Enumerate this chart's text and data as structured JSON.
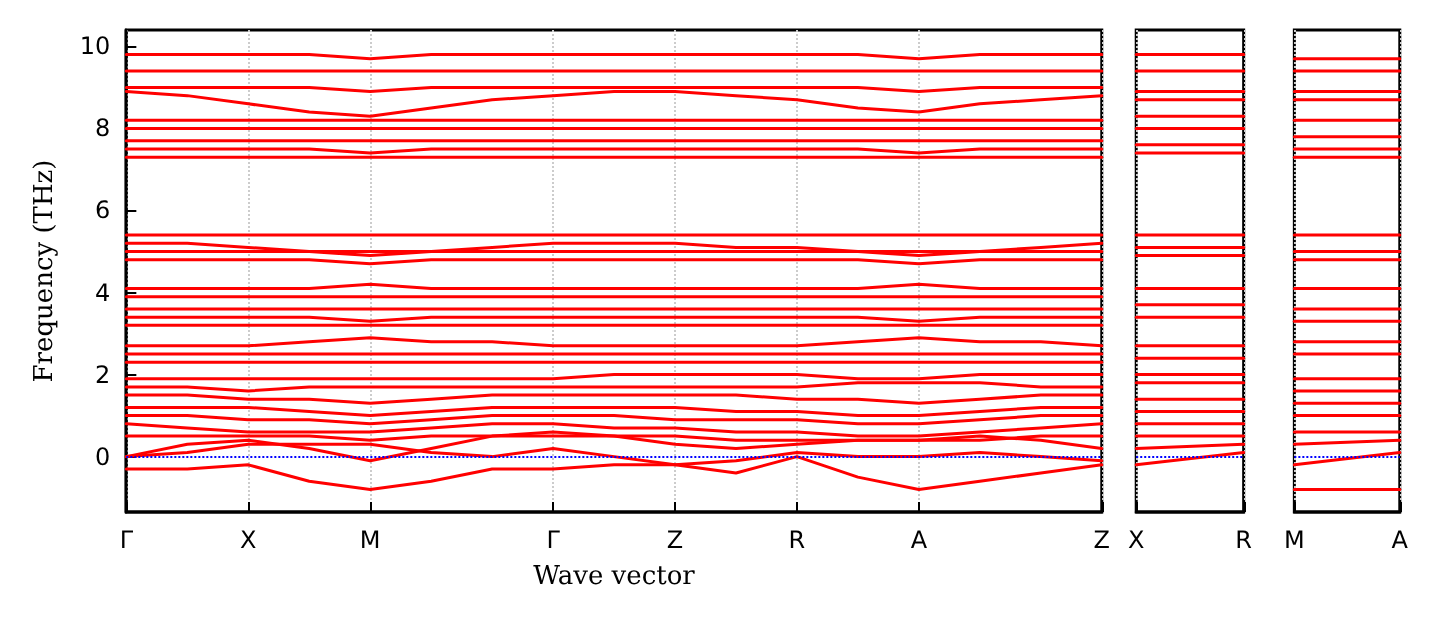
{
  "chart_data": [
    {
      "type": "line",
      "xlabel": "Wave vector",
      "ylabel": "Frequency (THz)",
      "categories": [
        "Γ",
        null,
        "X",
        null,
        "M",
        null,
        null,
        "Γ",
        null,
        "Z",
        null,
        "R",
        null,
        "A",
        null,
        null,
        "Z"
      ],
      "ylim": [
        -1.35,
        10.4
      ],
      "yticks": [
        0,
        2,
        4,
        6,
        8,
        10
      ],
      "grid": "x",
      "marker": "none",
      "line_style": "solid",
      "ref_lines": [
        {
          "axis": "y",
          "value": 0,
          "color": "#0000ff",
          "line_style": "dotted"
        }
      ],
      "series": [
        {
          "color": "#ff0000",
          "values": [
            9.8,
            9.8,
            9.8,
            9.8,
            9.7,
            9.8,
            9.8,
            9.8,
            9.8,
            9.8,
            9.8,
            9.8,
            9.8,
            9.7,
            9.8,
            9.8,
            9.8
          ]
        },
        {
          "color": "#ff0000",
          "values": [
            9.4,
            9.4,
            9.4,
            9.4,
            9.4,
            9.4,
            9.4,
            9.4,
            9.4,
            9.4,
            9.4,
            9.4,
            9.4,
            9.4,
            9.4,
            9.4,
            9.4
          ]
        },
        {
          "color": "#ff0000",
          "values": [
            9.0,
            9.0,
            9.0,
            9.0,
            8.9,
            9.0,
            9.0,
            9.0,
            9.0,
            9.0,
            9.0,
            9.0,
            9.0,
            8.9,
            9.0,
            9.0,
            9.0
          ]
        },
        {
          "color": "#ff0000",
          "values": [
            8.9,
            8.8,
            8.6,
            8.4,
            8.3,
            8.5,
            8.7,
            8.8,
            8.9,
            8.9,
            8.8,
            8.7,
            8.5,
            8.4,
            8.6,
            8.7,
            8.8
          ]
        },
        {
          "color": "#ff0000",
          "values": [
            8.2,
            8.2,
            8.2,
            8.2,
            8.2,
            8.2,
            8.2,
            8.2,
            8.2,
            8.2,
            8.2,
            8.2,
            8.2,
            8.2,
            8.2,
            8.2,
            8.2
          ]
        },
        {
          "color": "#ff0000",
          "values": [
            8.0,
            8.0,
            8.0,
            8.0,
            8.0,
            8.0,
            8.0,
            8.0,
            8.0,
            8.0,
            8.0,
            8.0,
            8.0,
            8.0,
            8.0,
            8.0,
            8.0
          ]
        },
        {
          "color": "#ff0000",
          "values": [
            7.7,
            7.7,
            7.7,
            7.7,
            7.7,
            7.7,
            7.7,
            7.7,
            7.7,
            7.7,
            7.7,
            7.7,
            7.7,
            7.7,
            7.7,
            7.7,
            7.7
          ]
        },
        {
          "color": "#ff0000",
          "values": [
            7.5,
            7.5,
            7.5,
            7.5,
            7.4,
            7.5,
            7.5,
            7.5,
            7.5,
            7.5,
            7.5,
            7.5,
            7.5,
            7.4,
            7.5,
            7.5,
            7.5
          ]
        },
        {
          "color": "#ff0000",
          "values": [
            7.3,
            7.3,
            7.3,
            7.3,
            7.3,
            7.3,
            7.3,
            7.3,
            7.3,
            7.3,
            7.3,
            7.3,
            7.3,
            7.3,
            7.3,
            7.3,
            7.3
          ]
        },
        {
          "color": "#ff0000",
          "values": [
            5.4,
            5.4,
            5.4,
            5.4,
            5.4,
            5.4,
            5.4,
            5.4,
            5.4,
            5.4,
            5.4,
            5.4,
            5.4,
            5.4,
            5.4,
            5.4,
            5.4
          ]
        },
        {
          "color": "#ff0000",
          "values": [
            5.2,
            5.2,
            5.1,
            5.0,
            4.9,
            5.0,
            5.1,
            5.2,
            5.2,
            5.2,
            5.1,
            5.1,
            5.0,
            4.9,
            5.0,
            5.1,
            5.2
          ]
        },
        {
          "color": "#ff0000",
          "values": [
            5.0,
            5.0,
            5.0,
            5.0,
            5.0,
            5.0,
            5.0,
            5.0,
            5.0,
            5.0,
            5.0,
            5.0,
            5.0,
            5.0,
            5.0,
            5.0,
            5.0
          ]
        },
        {
          "color": "#ff0000",
          "values": [
            4.8,
            4.8,
            4.8,
            4.8,
            4.7,
            4.8,
            4.8,
            4.8,
            4.8,
            4.8,
            4.8,
            4.8,
            4.8,
            4.7,
            4.8,
            4.8,
            4.8
          ]
        },
        {
          "color": "#ff0000",
          "values": [
            4.1,
            4.1,
            4.1,
            4.1,
            4.2,
            4.1,
            4.1,
            4.1,
            4.1,
            4.1,
            4.1,
            4.1,
            4.1,
            4.2,
            4.1,
            4.1,
            4.1
          ]
        },
        {
          "color": "#ff0000",
          "values": [
            3.9,
            3.9,
            3.9,
            3.9,
            3.9,
            3.9,
            3.9,
            3.9,
            3.9,
            3.9,
            3.9,
            3.9,
            3.9,
            3.9,
            3.9,
            3.9,
            3.9
          ]
        },
        {
          "color": "#ff0000",
          "values": [
            3.6,
            3.6,
            3.6,
            3.6,
            3.6,
            3.6,
            3.6,
            3.6,
            3.6,
            3.6,
            3.6,
            3.6,
            3.6,
            3.6,
            3.6,
            3.6,
            3.6
          ]
        },
        {
          "color": "#ff0000",
          "values": [
            3.4,
            3.4,
            3.4,
            3.4,
            3.3,
            3.4,
            3.4,
            3.4,
            3.4,
            3.4,
            3.4,
            3.4,
            3.4,
            3.3,
            3.4,
            3.4,
            3.4
          ]
        },
        {
          "color": "#ff0000",
          "values": [
            3.2,
            3.2,
            3.2,
            3.2,
            3.2,
            3.2,
            3.2,
            3.2,
            3.2,
            3.2,
            3.2,
            3.2,
            3.2,
            3.2,
            3.2,
            3.2,
            3.2
          ]
        },
        {
          "color": "#ff0000",
          "values": [
            2.7,
            2.7,
            2.7,
            2.8,
            2.9,
            2.8,
            2.8,
            2.7,
            2.7,
            2.7,
            2.7,
            2.7,
            2.8,
            2.9,
            2.8,
            2.8,
            2.7
          ]
        },
        {
          "color": "#ff0000",
          "values": [
            2.5,
            2.5,
            2.5,
            2.5,
            2.5,
            2.5,
            2.5,
            2.5,
            2.5,
            2.5,
            2.5,
            2.5,
            2.5,
            2.5,
            2.5,
            2.5,
            2.5
          ]
        },
        {
          "color": "#ff0000",
          "values": [
            2.3,
            2.3,
            2.3,
            2.3,
            2.3,
            2.3,
            2.3,
            2.3,
            2.3,
            2.3,
            2.3,
            2.3,
            2.3,
            2.3,
            2.3,
            2.3,
            2.3
          ]
        },
        {
          "color": "#ff0000",
          "values": [
            1.9,
            1.9,
            1.9,
            1.9,
            1.9,
            1.9,
            1.9,
            1.9,
            2.0,
            2.0,
            2.0,
            2.0,
            1.9,
            1.9,
            2.0,
            2.0,
            2.0
          ]
        },
        {
          "color": "#ff0000",
          "values": [
            1.7,
            1.7,
            1.6,
            1.7,
            1.7,
            1.7,
            1.7,
            1.7,
            1.7,
            1.7,
            1.7,
            1.7,
            1.8,
            1.8,
            1.8,
            1.7,
            1.7
          ]
        },
        {
          "color": "#ff0000",
          "values": [
            1.5,
            1.5,
            1.4,
            1.4,
            1.3,
            1.4,
            1.5,
            1.5,
            1.5,
            1.5,
            1.5,
            1.4,
            1.4,
            1.3,
            1.4,
            1.5,
            1.5
          ]
        },
        {
          "color": "#ff0000",
          "values": [
            1.2,
            1.2,
            1.2,
            1.1,
            1.0,
            1.1,
            1.2,
            1.2,
            1.2,
            1.2,
            1.1,
            1.1,
            1.0,
            1.0,
            1.1,
            1.2,
            1.2
          ]
        },
        {
          "color": "#ff0000",
          "values": [
            1.0,
            1.0,
            0.9,
            0.9,
            0.8,
            0.9,
            1.0,
            1.0,
            1.0,
            0.9,
            0.9,
            0.9,
            0.8,
            0.8,
            0.9,
            1.0,
            1.0
          ]
        },
        {
          "color": "#ff0000",
          "values": [
            0.8,
            0.7,
            0.6,
            0.6,
            0.6,
            0.7,
            0.8,
            0.8,
            0.7,
            0.7,
            0.6,
            0.6,
            0.5,
            0.5,
            0.6,
            0.7,
            0.8
          ]
        },
        {
          "color": "#ff0000",
          "values": [
            0.5,
            0.5,
            0.5,
            0.5,
            0.4,
            0.5,
            0.5,
            0.5,
            0.5,
            0.5,
            0.4,
            0.4,
            0.4,
            0.4,
            0.4,
            0.5,
            0.5
          ]
        },
        {
          "color": "#ff0000",
          "values": [
            0,
            0.3,
            0.4,
            0.2,
            -0.1,
            0.2,
            0.5,
            0.6,
            0.5,
            0.3,
            0.2,
            0.3,
            0.4,
            0.4,
            0.5,
            0.4,
            0.2
          ]
        },
        {
          "color": "#ff0000",
          "values": [
            0,
            0.1,
            0.3,
            0.3,
            0.3,
            0.1,
            0,
            0.2,
            0,
            -0.2,
            -0.1,
            0.1,
            0,
            0,
            0.1,
            0,
            -0.1
          ]
        },
        {
          "color": "#ff0000",
          "values": [
            -0.3,
            -0.3,
            -0.2,
            -0.6,
            -0.8,
            -0.6,
            -0.3,
            -0.3,
            -0.2,
            -0.2,
            -0.4,
            0,
            -0.5,
            -0.8,
            -0.6,
            -0.4,
            -0.2
          ]
        }
      ]
    },
    {
      "type": "line",
      "categories": [
        "X",
        "R"
      ],
      "ylim": [
        -1.35,
        10.4
      ],
      "tick_labels": "x",
      "grid": "x",
      "marker": "none",
      "line_style": "solid",
      "ref_lines": [
        {
          "axis": "y",
          "value": 0,
          "color": "#0000ff",
          "line_style": "dotted"
        }
      ],
      "series": [
        {
          "color": "#ff0000",
          "values": [
            9.8,
            9.8
          ]
        },
        {
          "color": "#ff0000",
          "values": [
            9.4,
            9.4
          ]
        },
        {
          "color": "#ff0000",
          "values": [
            8.9,
            8.9
          ]
        },
        {
          "color": "#ff0000",
          "values": [
            8.7,
            8.7
          ]
        },
        {
          "color": "#ff0000",
          "values": [
            8.3,
            8.3
          ]
        },
        {
          "color": "#ff0000",
          "values": [
            8.0,
            8.0
          ]
        },
        {
          "color": "#ff0000",
          "values": [
            7.6,
            7.6
          ]
        },
        {
          "color": "#ff0000",
          "values": [
            7.4,
            7.4
          ]
        },
        {
          "color": "#ff0000",
          "values": [
            5.4,
            5.4
          ]
        },
        {
          "color": "#ff0000",
          "values": [
            5.1,
            5.1
          ]
        },
        {
          "color": "#ff0000",
          "values": [
            4.9,
            4.9
          ]
        },
        {
          "color": "#ff0000",
          "values": [
            4.1,
            4.1
          ]
        },
        {
          "color": "#ff0000",
          "values": [
            3.7,
            3.7
          ]
        },
        {
          "color": "#ff0000",
          "values": [
            3.4,
            3.4
          ]
        },
        {
          "color": "#ff0000",
          "values": [
            2.7,
            2.7
          ]
        },
        {
          "color": "#ff0000",
          "values": [
            2.4,
            2.4
          ]
        },
        {
          "color": "#ff0000",
          "values": [
            2.0,
            2.0
          ]
        },
        {
          "color": "#ff0000",
          "values": [
            1.8,
            1.8
          ]
        },
        {
          "color": "#ff0000",
          "values": [
            1.4,
            1.4
          ]
        },
        {
          "color": "#ff0000",
          "values": [
            1.1,
            1.1
          ]
        },
        {
          "color": "#ff0000",
          "values": [
            0.8,
            0.8
          ]
        },
        {
          "color": "#ff0000",
          "values": [
            0.5,
            0.5
          ]
        },
        {
          "color": "#ff0000",
          "values": [
            0.2,
            0.3
          ]
        },
        {
          "color": "#ff0000",
          "values": [
            -0.2,
            0.1
          ]
        }
      ]
    },
    {
      "type": "line",
      "categories": [
        "M",
        "A"
      ],
      "ylim": [
        -1.35,
        10.4
      ],
      "tick_labels": "x",
      "grid": "x",
      "marker": "none",
      "line_style": "solid",
      "ref_lines": [
        {
          "axis": "y",
          "value": 0,
          "color": "#0000ff",
          "line_style": "dotted"
        }
      ],
      "series": [
        {
          "color": "#ff0000",
          "values": [
            9.7,
            9.7
          ]
        },
        {
          "color": "#ff0000",
          "values": [
            9.4,
            9.4
          ]
        },
        {
          "color": "#ff0000",
          "values": [
            8.9,
            8.9
          ]
        },
        {
          "color": "#ff0000",
          "values": [
            8.7,
            8.7
          ]
        },
        {
          "color": "#ff0000",
          "values": [
            8.2,
            8.2
          ]
        },
        {
          "color": "#ff0000",
          "values": [
            7.8,
            7.8
          ]
        },
        {
          "color": "#ff0000",
          "values": [
            7.5,
            7.5
          ]
        },
        {
          "color": "#ff0000",
          "values": [
            7.3,
            7.3
          ]
        },
        {
          "color": "#ff0000",
          "values": [
            5.4,
            5.4
          ]
        },
        {
          "color": "#ff0000",
          "values": [
            5.0,
            5.0
          ]
        },
        {
          "color": "#ff0000",
          "values": [
            4.8,
            4.8
          ]
        },
        {
          "color": "#ff0000",
          "values": [
            4.1,
            4.1
          ]
        },
        {
          "color": "#ff0000",
          "values": [
            3.6,
            3.6
          ]
        },
        {
          "color": "#ff0000",
          "values": [
            3.3,
            3.3
          ]
        },
        {
          "color": "#ff0000",
          "values": [
            2.8,
            2.8
          ]
        },
        {
          "color": "#ff0000",
          "values": [
            2.5,
            2.5
          ]
        },
        {
          "color": "#ff0000",
          "values": [
            1.9,
            1.9
          ]
        },
        {
          "color": "#ff0000",
          "values": [
            1.6,
            1.6
          ]
        },
        {
          "color": "#ff0000",
          "values": [
            1.3,
            1.3
          ]
        },
        {
          "color": "#ff0000",
          "values": [
            1.0,
            1.0
          ]
        },
        {
          "color": "#ff0000",
          "values": [
            0.6,
            0.6
          ]
        },
        {
          "color": "#ff0000",
          "values": [
            0.3,
            0.4
          ]
        },
        {
          "color": "#ff0000",
          "values": [
            -0.2,
            0.1
          ]
        },
        {
          "color": "#ff0000",
          "values": [
            -0.8,
            -0.8
          ]
        }
      ]
    }
  ]
}
